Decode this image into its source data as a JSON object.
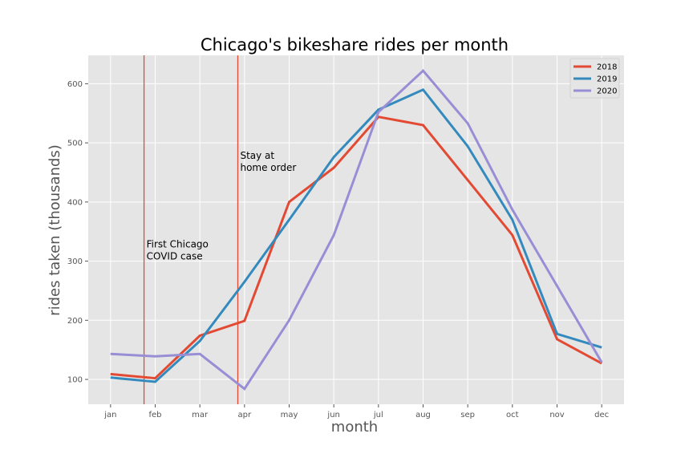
{
  "chart_data": {
    "type": "line",
    "title": "Chicago's bikeshare rides per month",
    "xlabel": "month",
    "ylabel": "rides taken (thousands)",
    "categories": [
      "jan",
      "feb",
      "mar",
      "apr",
      "may",
      "jun",
      "jul",
      "aug",
      "sep",
      "oct",
      "nov",
      "dec"
    ],
    "ylim": [
      58,
      648
    ],
    "yticks": [
      100,
      200,
      300,
      400,
      500,
      600
    ],
    "grid": true,
    "legend_position": "top-right",
    "series": [
      {
        "name": "2018",
        "color": "#E24A33",
        "values": [
          109,
          102,
          174,
          199,
          400,
          458,
          544,
          530,
          437,
          344,
          168,
          127
        ]
      },
      {
        "name": "2019",
        "color": "#348ABD",
        "values": [
          103,
          96,
          165,
          265,
          370,
          476,
          556,
          590,
          494,
          370,
          177,
          154
        ]
      },
      {
        "name": "2020",
        "color": "#988ED5",
        "values": [
          143,
          139,
          143,
          84,
          200,
          344,
          552,
          622,
          533,
          387,
          258,
          129
        ]
      }
    ],
    "vlines": [
      {
        "x": 0.75,
        "label": "First Chicago COVID case",
        "label_lines": [
          "First Chicago",
          "COVID case"
        ],
        "label_y": 323,
        "color": "#E24A33"
      },
      {
        "x": 2.85,
        "label": "Stay at home order",
        "label_lines": [
          "Stay at",
          "home order"
        ],
        "label_y": 473,
        "color": "#E24A33"
      }
    ]
  },
  "style": {
    "plot_background": "#E5E5E5",
    "grid_color": "#FFFFFF"
  }
}
